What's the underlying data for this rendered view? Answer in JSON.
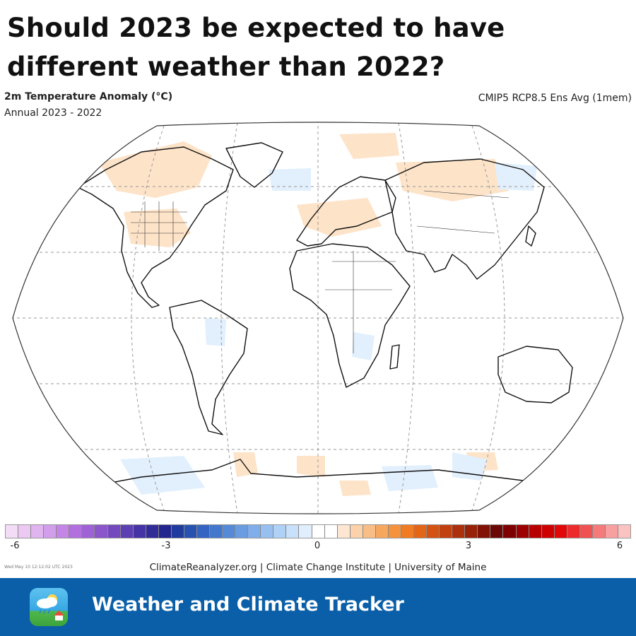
{
  "headline": "Should 2023 be expected to have different weather than 2022?",
  "map": {
    "title": "2m Temperature Anomaly (°C)",
    "subtitle": "Annual 2023 - 2022",
    "model": "CMIP5 RCP8.5 Ens Avg (1mem)",
    "projection": "Robinson-style world map"
  },
  "colorbar": {
    "colors": [
      "#f3dcf6",
      "#ecc9f3",
      "#dfb4ef",
      "#d29deb",
      "#c486e6",
      "#b270df",
      "#9f62d6",
      "#8b55cc",
      "#7449bf",
      "#5c3fb2",
      "#4534a6",
      "#322c98",
      "#23268e",
      "#1f3b9e",
      "#2752b2",
      "#3464c1",
      "#4377cd",
      "#568ad7",
      "#6a9ce1",
      "#80aeea",
      "#97c0f1",
      "#b0d1f6",
      "#c8e0fa",
      "#e0eefd",
      "#ffffff",
      "#ffffff",
      "#fde7d2",
      "#fbd2aa",
      "#f9be85",
      "#f7a85f",
      "#f5923d",
      "#f07b22",
      "#e36516",
      "#d45212",
      "#c1400f",
      "#ad300c",
      "#972109",
      "#801306",
      "#6b0805",
      "#7e0000",
      "#9c0000",
      "#b70000",
      "#cf0000",
      "#e30808",
      "#ec2c2c",
      "#f05252",
      "#f57a7a",
      "#f8a0a0",
      "#fbc2c2"
    ],
    "ticks": [
      {
        "label": "-6"
      },
      {
        "label": "-3"
      },
      {
        "label": "0"
      },
      {
        "label": "3"
      },
      {
        "label": "6"
      }
    ]
  },
  "timestamp": "Wed May 10 12:12:02 UTC 2023",
  "credits": "ClimateReanalyzer.org | Climate Change Institute | University of Maine",
  "footer": {
    "title": "Weather and Climate Tracker",
    "icon": "weather-app-icon"
  }
}
